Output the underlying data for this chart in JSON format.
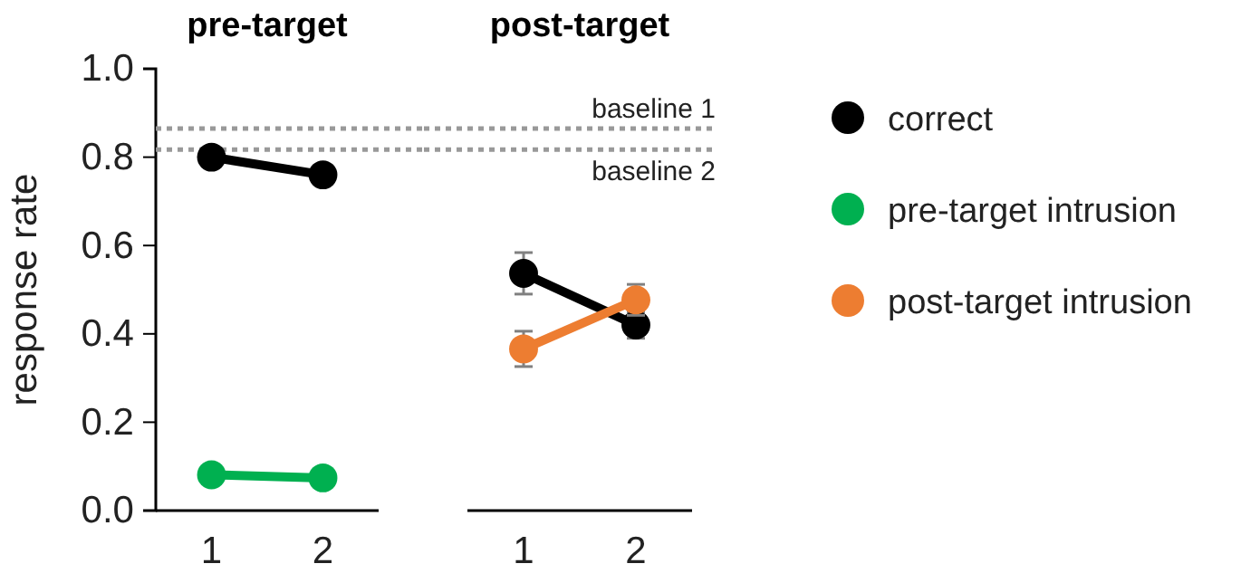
{
  "chart_data": [
    {
      "type": "line",
      "title": "pre-target",
      "ylabel": "response rate",
      "categories": [
        "1",
        "2"
      ],
      "ylim": [
        0,
        1
      ],
      "yticks": [
        {
          "value": 0,
          "label": "0.0"
        },
        {
          "value": 0.2,
          "label": "0.2"
        },
        {
          "value": 0.4,
          "label": "0.4"
        },
        {
          "value": 0.6,
          "label": "0.6"
        },
        {
          "value": 0.8,
          "label": "0.8"
        },
        {
          "value": 1,
          "label": "1.0"
        }
      ],
      "marker": "circle",
      "line_style": "solid",
      "grid": false,
      "legend": "right",
      "series": [
        {
          "name": "correct",
          "color": "#000000",
          "values": [
            0.8,
            0.76
          ]
        },
        {
          "name": "pre-target intrusion",
          "color": "#00b050",
          "values": [
            0.081,
            0.074
          ]
        }
      ],
      "ref_lines": [
        {
          "axis": "y",
          "value": 0.865,
          "line_style": "dotted",
          "color": "#999999"
        },
        {
          "axis": "y",
          "value": 0.817,
          "line_style": "dotted",
          "color": "#999999"
        }
      ]
    },
    {
      "type": "line",
      "title": "post-target",
      "categories": [
        "1",
        "2"
      ],
      "ylim": [
        0,
        1
      ],
      "tick_labels": "x",
      "marker": "circle",
      "line_style": "solid",
      "grid": false,
      "legend": "right",
      "series": [
        {
          "name": "correct",
          "color": "#000000",
          "values": [
            0.537,
            0.42
          ],
          "errors": [
            0.047,
            0.03
          ]
        },
        {
          "name": "post-target intrusion",
          "color": "#ed7d31",
          "values": [
            0.366,
            0.477
          ],
          "errors": [
            0.04,
            0.035
          ]
        }
      ],
      "ref_lines": [
        {
          "axis": "y",
          "value": 0.865,
          "label": "baseline 1",
          "line_style": "dotted",
          "color": "#999999"
        },
        {
          "axis": "y",
          "value": 0.817,
          "label": "baseline 2",
          "line_style": "dotted",
          "color": "#999999"
        }
      ]
    }
  ]
}
